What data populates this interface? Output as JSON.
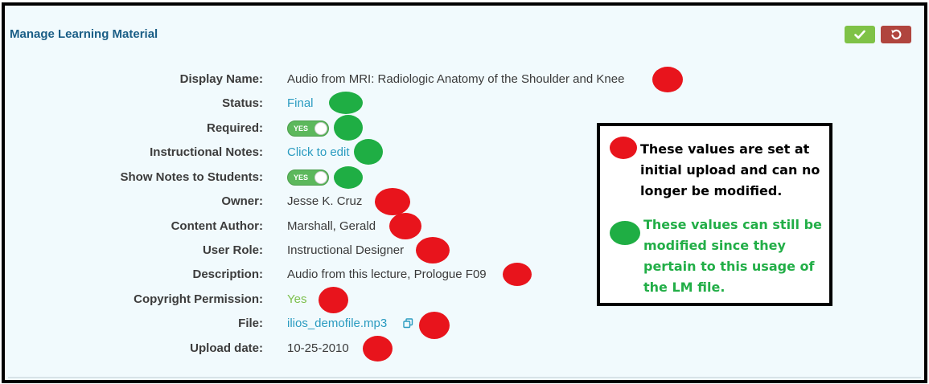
{
  "header": {
    "title": "Manage Learning Material",
    "done_icon": "checkmark-icon",
    "cancel_icon": "undo-icon",
    "colors": {
      "title": "#1b5e86",
      "done": "#7fc247",
      "cancel": "#b0453e"
    }
  },
  "fields": {
    "display_name": {
      "label": "Display Name:",
      "value": "Audio from MRI: Radiologic Anatomy of the Shoulder and Knee"
    },
    "status": {
      "label": "Status:",
      "value": "Final"
    },
    "required": {
      "label": "Required:",
      "toggle": "YES"
    },
    "instructional_notes": {
      "label": "Instructional Notes:",
      "value": "Click to edit"
    },
    "show_notes": {
      "label": "Show Notes to Students:",
      "toggle": "YES"
    },
    "owner": {
      "label": "Owner:",
      "value": "Jesse K. Cruz"
    },
    "content_author": {
      "label": "Content Author:",
      "value": "Marshall, Gerald"
    },
    "user_role": {
      "label": "User Role:",
      "value": "Instructional Designer"
    },
    "description": {
      "label": "Description:",
      "value": "Audio from this lecture, Prologue F09"
    },
    "copyright": {
      "label": "Copyright Permission:",
      "value": "Yes"
    },
    "file": {
      "label": "File:",
      "value": "ilios_demofile.mp3",
      "icon": "copy-icon"
    },
    "upload_date": {
      "label": "Upload date:",
      "value": "10-25-2010"
    }
  },
  "legend": {
    "fixed_text": "These values are set at initial upload and can no longer be modified.",
    "editable_text": "These values can still be modified since they pertain to this usage of the LM file.",
    "colors": {
      "fixed": "#e8141c",
      "editable": "#1fae44"
    }
  }
}
